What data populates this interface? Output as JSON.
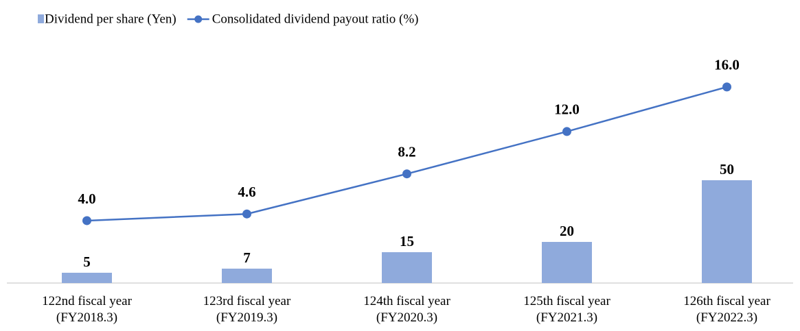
{
  "chart_data": {
    "type": "bar",
    "categories": [
      "122nd fiscal year\n(FY2018.3)",
      "123rd fiscal year\n(FY2019.3)",
      "124th fiscal year\n(FY2020.3)",
      "125th fiscal year\n(FY2021.3)",
      "126th fiscal year\n(FY2022.3)"
    ],
    "series": [
      {
        "name": "Dividend per share (Yen)",
        "type": "bar",
        "color": "#8faadc",
        "values": [
          5,
          7,
          15,
          20,
          50
        ]
      },
      {
        "name": "Consolidated dividend payout ratio (%)",
        "type": "line",
        "axis": "y2",
        "color": "#4472c4",
        "values": [
          4.0,
          4.6,
          8.2,
          12.0,
          16.0
        ],
        "value_labels": [
          "4.0",
          "4.6",
          "8.2",
          "12.0",
          "16.0"
        ]
      }
    ],
    "ylim": [
      0,
      110
    ],
    "y2lim": [
      -1.6,
      18.7
    ],
    "legend": "top-left"
  }
}
